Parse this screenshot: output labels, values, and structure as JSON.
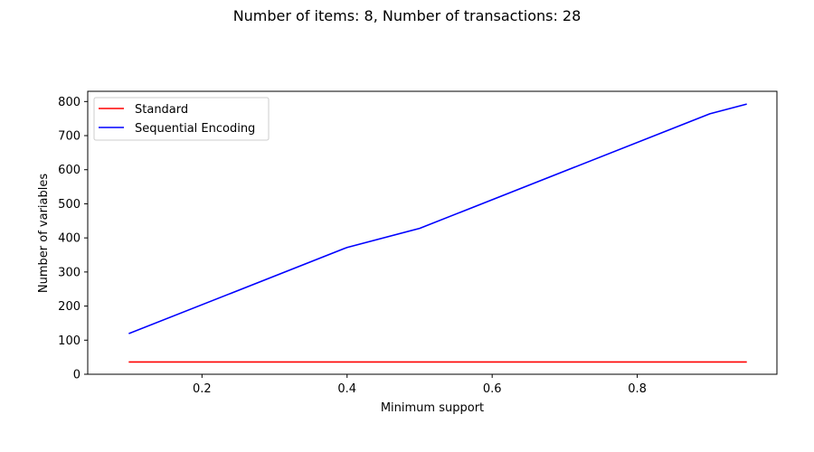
{
  "chart_data": {
    "type": "line",
    "title": "Number of items: 8, Number of transactions: 28",
    "xlabel": "Minimum support",
    "ylabel": "Number of variables",
    "xlim": [
      0.0425,
      0.9925
    ],
    "ylim": [
      0,
      830
    ],
    "xticks": [
      0.2,
      0.4,
      0.6,
      0.8
    ],
    "xtick_labels": [
      "0.2",
      "0.4",
      "0.6",
      "0.8"
    ],
    "yticks": [
      0,
      100,
      200,
      300,
      400,
      500,
      600,
      700,
      800
    ],
    "ytick_labels": [
      "0",
      "100",
      "200",
      "300",
      "400",
      "500",
      "600",
      "700",
      "800"
    ],
    "grid": false,
    "legend_position": "top-left",
    "series": [
      {
        "name": "Standard",
        "color": "#ff0000",
        "x": [
          0.1,
          0.95
        ],
        "y": [
          36,
          36
        ]
      },
      {
        "name": "Sequential Encoding",
        "color": "#0000ff",
        "x": [
          0.1,
          0.4,
          0.5,
          0.9,
          0.95
        ],
        "y": [
          120,
          372,
          428,
          764,
          792
        ]
      }
    ]
  }
}
